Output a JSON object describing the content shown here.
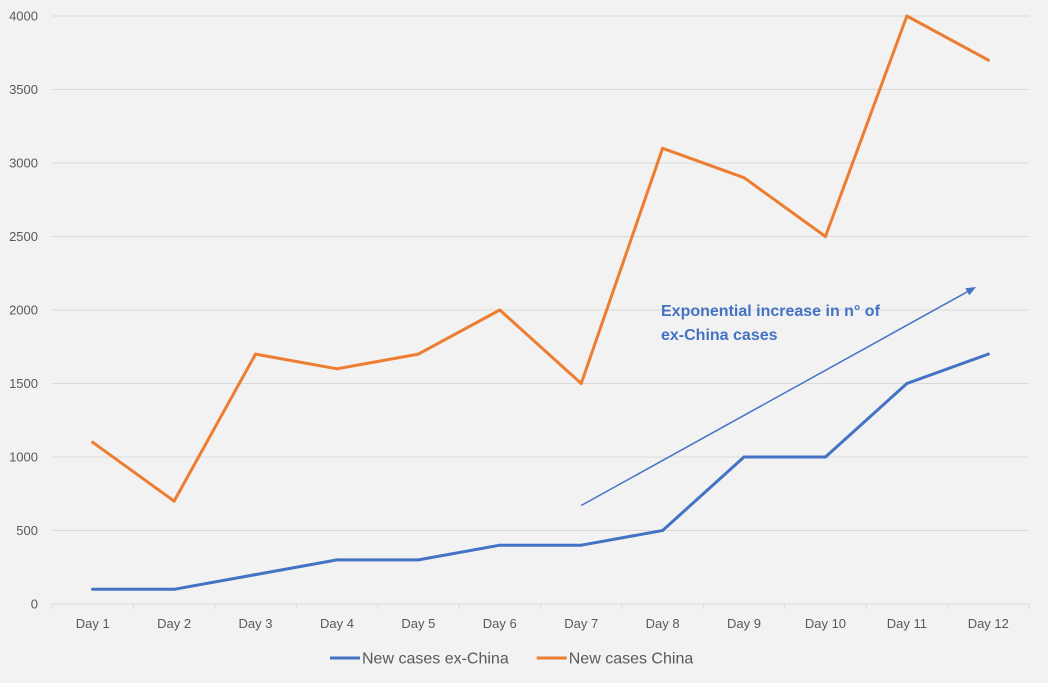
{
  "chart_data": {
    "type": "line",
    "title": "",
    "xlabel": "",
    "ylabel": "",
    "categories": [
      "Day 1",
      "Day 2",
      "Day 3",
      "Day 4",
      "Day 5",
      "Day 6",
      "Day 7",
      "Day 8",
      "Day 9",
      "Day 10",
      "Day 11",
      "Day 12"
    ],
    "ylim": [
      0,
      4000
    ],
    "yticks": [
      0,
      500,
      1000,
      1500,
      2000,
      2500,
      3000,
      3500,
      4000
    ],
    "grid": true,
    "legend_position": "bottom",
    "series": [
      {
        "name": "New cases ex-China",
        "color": "#4472c4",
        "values": [
          100,
          100,
          200,
          300,
          300,
          400,
          400,
          500,
          1000,
          1000,
          1500,
          1700
        ]
      },
      {
        "name": "New cases China",
        "color": "#ed7d31",
        "values": [
          1100,
          700,
          1700,
          1600,
          1700,
          2000,
          1500,
          3100,
          2900,
          2500,
          4000,
          3700
        ]
      }
    ],
    "annotation": {
      "lines": [
        "Exponential increase in n° of",
        "ex-China cases"
      ],
      "color": "#4472c4",
      "arrow_from": {
        "x": "Day 7",
        "y": 670
      },
      "arrow_to": {
        "x": "Day 12",
        "y": 2150
      }
    }
  }
}
